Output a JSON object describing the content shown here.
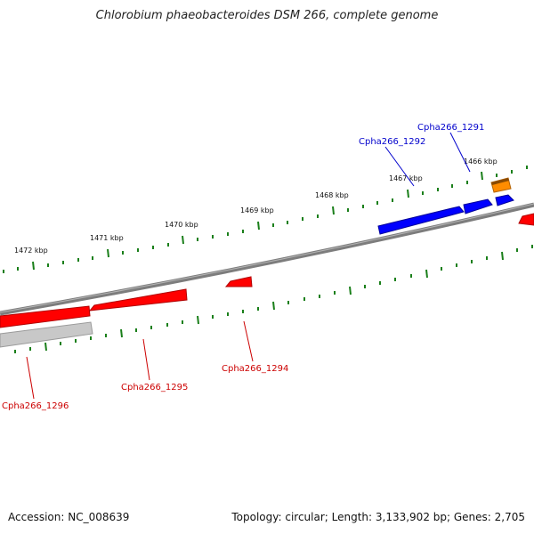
{
  "title": "Chlorobium phaeobacteroides DSM 266, complete genome",
  "footer": {
    "accession": "Accession: NC_008639",
    "summary": "Topology: circular; Length: 3,133,902 bp; Genes: 2,705"
  },
  "scale_labels": [
    "1466 kbp",
    "1467 kbp",
    "1468 kbp",
    "1469 kbp",
    "1470 kbp",
    "1471 kbp",
    "1472 kbp"
  ],
  "genes": [
    {
      "label": "Cpha266_1291",
      "color": "#0000cc"
    },
    {
      "label": "Cpha266_1292",
      "color": "#0000cc"
    },
    {
      "label": "Cpha266_1294",
      "color": "#cc0000"
    },
    {
      "label": "Cpha266_1295",
      "color": "#cc0000"
    },
    {
      "label": "Cpha266_1296",
      "color": "#cc0000"
    }
  ],
  "colors": {
    "reverse_gene": "#ff0000",
    "forward_gene": "#0000ff",
    "rna_gene": "#ff8c00",
    "other_feature": "#c0c0c0",
    "backbone": "#808080",
    "ticks": "#1a7f1a"
  }
}
